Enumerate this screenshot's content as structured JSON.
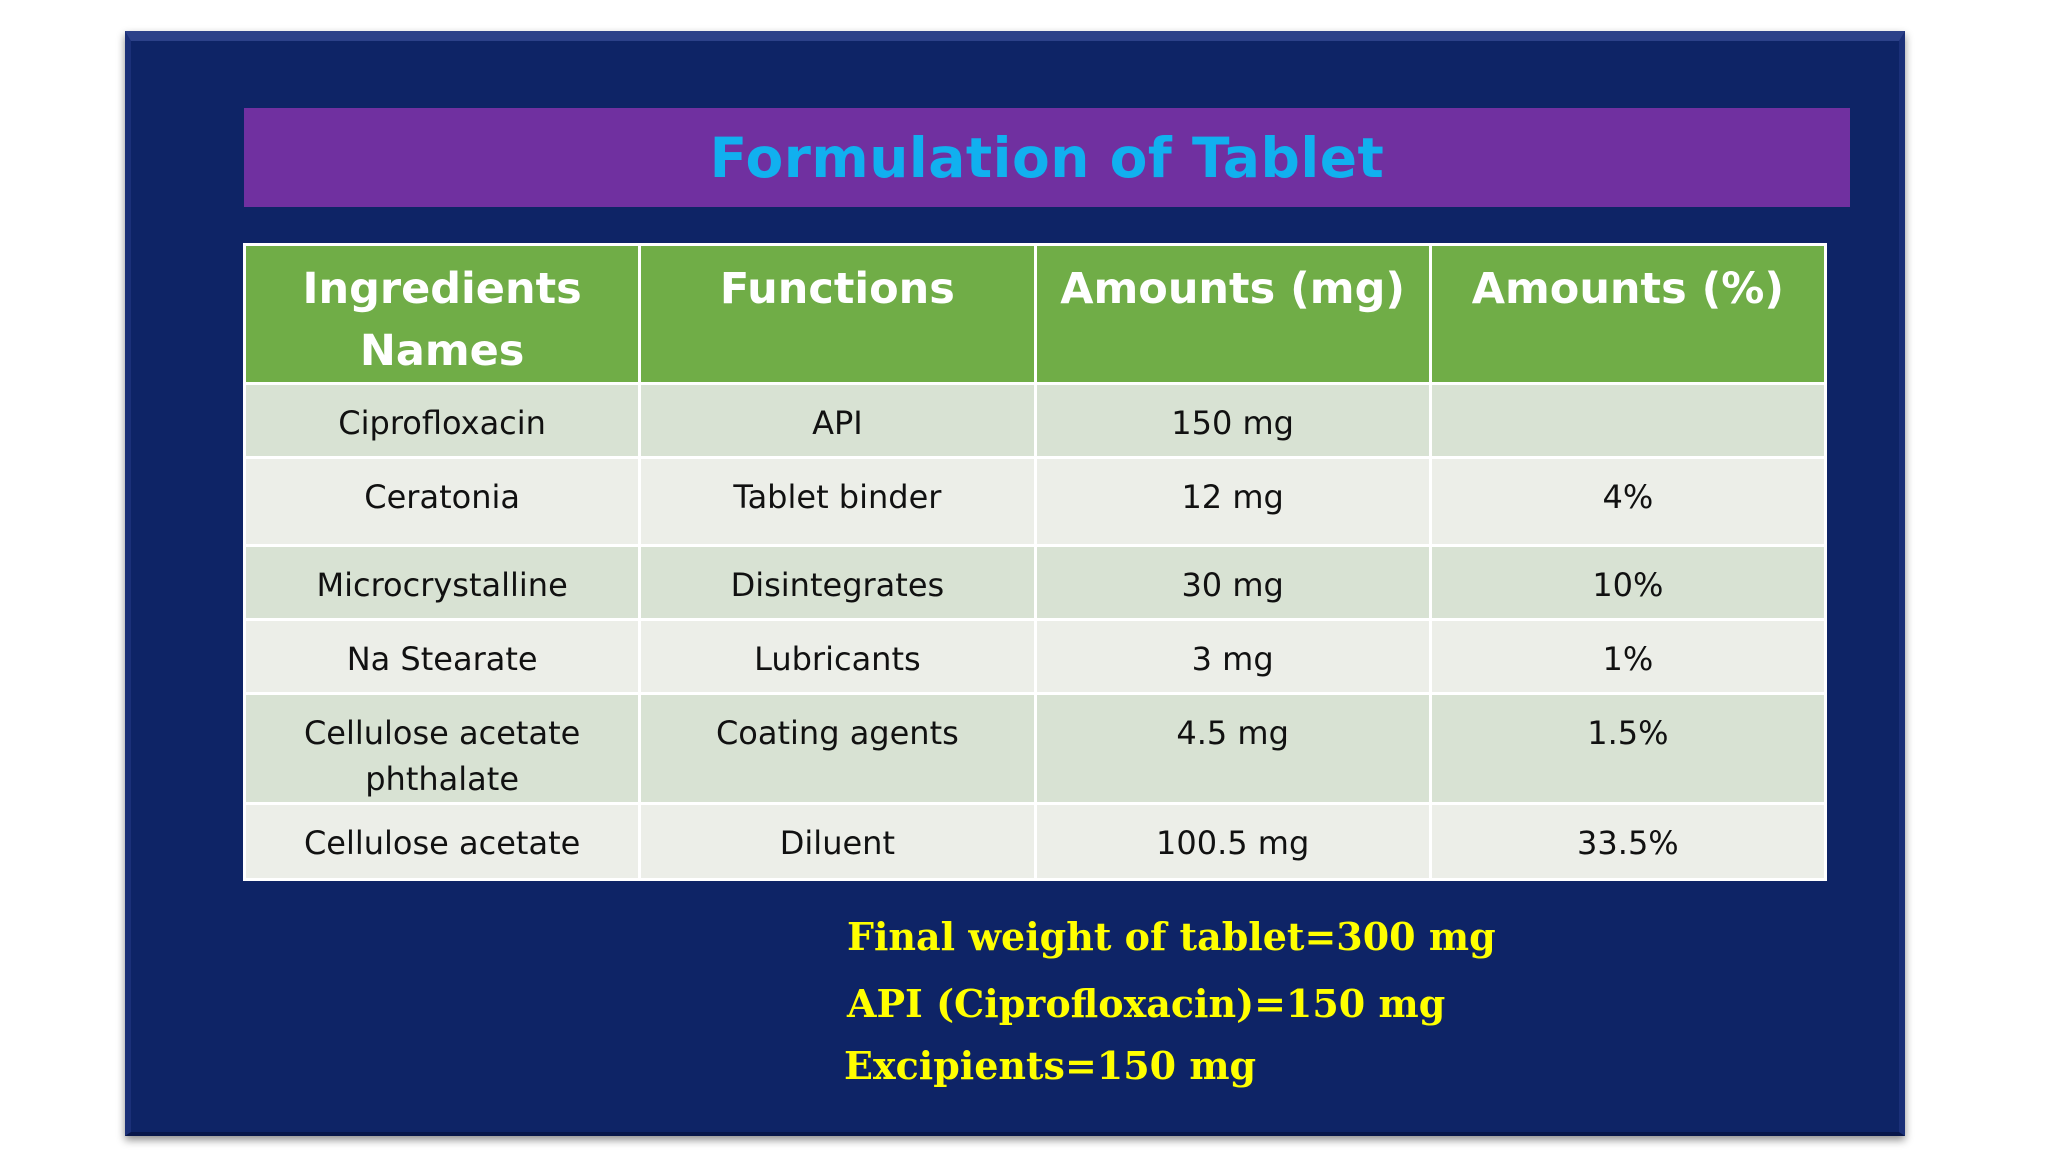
{
  "title": "Formulation of Tablet",
  "table": {
    "headers": [
      "Ingredients Names",
      "Functions",
      "Amounts (mg)",
      "Amounts (%)"
    ],
    "rows": [
      [
        "Ciprofloxacin",
        "API",
        "150 mg",
        ""
      ],
      [
        "Ceratonia",
        "Tablet binder",
        "12 mg",
        "4%"
      ],
      [
        "Microcrystalline",
        "Disintegrates",
        "30 mg",
        "10%"
      ],
      [
        "Na Stearate",
        "Lubricants",
        "3 mg",
        "1%"
      ],
      [
        "Cellulose acetate phthalate",
        "Coating agents",
        "4.5 mg",
        "1.5%"
      ],
      [
        "Cellulose acetate",
        "Diluent",
        "100.5 mg",
        "33.5%"
      ]
    ]
  },
  "summary": [
    "Final weight of tablet=300 mg",
    "API (Ciprofloxacin)=150 mg",
    "Excipients=150 mg"
  ],
  "colors": {
    "background": "#0e2466",
    "title_bar": "#7030a0",
    "title_text": "#11b0ef",
    "header_fill": "#70ad47",
    "row_odd": "#d8e2d3",
    "row_even": "#eceee8",
    "summary_text": "#ffff00"
  }
}
